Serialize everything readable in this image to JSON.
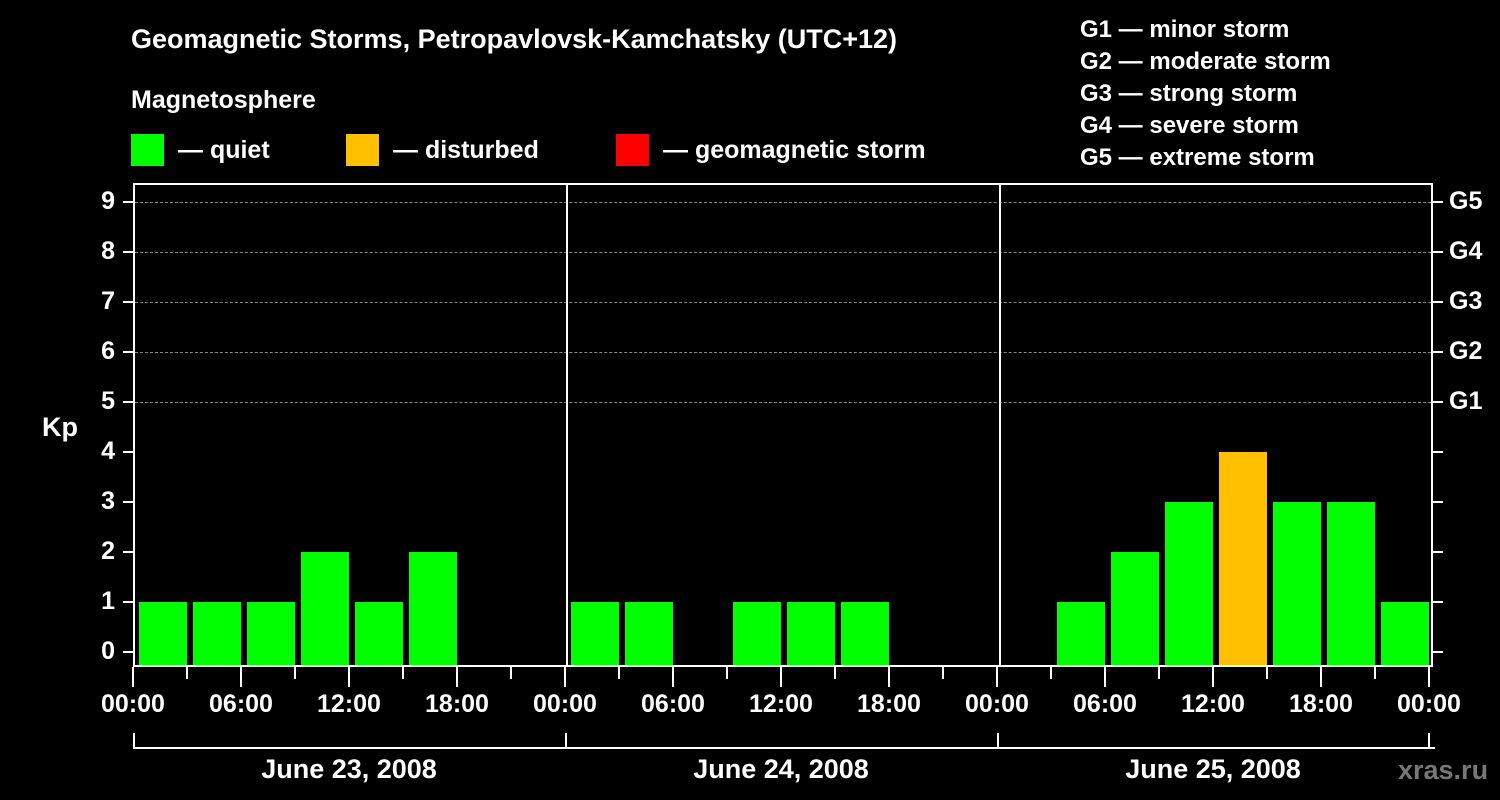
{
  "header": {
    "title": "Geomagnetic Storms, Petropavlovsk-Kamchatsky (UTC+12)",
    "subtitle": "Magnetosphere"
  },
  "legend": {
    "items": [
      {
        "label": "— quiet",
        "color": "#00ff00"
      },
      {
        "label": "— disturbed",
        "color": "#ffc000"
      },
      {
        "label": "— geomagnetic storm",
        "color": "#ff0000"
      }
    ]
  },
  "storm_scale": [
    "G1 — minor storm",
    "G2 — moderate storm",
    "G3 — strong storm",
    "G4 — severe storm",
    "G5 — extreme storm"
  ],
  "axes": {
    "ylabel": "Kp",
    "yticks": [
      "0",
      "1",
      "2",
      "3",
      "4",
      "5",
      "6",
      "7",
      "8",
      "9"
    ],
    "right_ticks": [
      {
        "kp": 5,
        "label": "G1"
      },
      {
        "kp": 6,
        "label": "G2"
      },
      {
        "kp": 7,
        "label": "G3"
      },
      {
        "kp": 8,
        "label": "G4"
      },
      {
        "kp": 9,
        "label": "G5"
      }
    ],
    "xticks": [
      "00:00",
      "06:00",
      "12:00",
      "18:00",
      "00:00",
      "06:00",
      "12:00",
      "18:00",
      "00:00",
      "06:00",
      "12:00",
      "18:00",
      "00:00"
    ],
    "dates": [
      "June 23, 2008",
      "June 24, 2008",
      "June 25, 2008"
    ]
  },
  "watermark": "xras.ru",
  "chart_data": {
    "type": "bar",
    "title": "Geomagnetic Storms, Petropavlovsk-Kamchatsky (UTC+12)",
    "xlabel": "",
    "ylabel": "Kp",
    "ylim": [
      0,
      9
    ],
    "grid": true,
    "interval_hours": 3,
    "legend": [
      "quiet",
      "disturbed",
      "geomagnetic storm"
    ],
    "categories": [
      "06-23 00:00",
      "06-23 03:00",
      "06-23 06:00",
      "06-23 09:00",
      "06-23 12:00",
      "06-23 15:00",
      "06-23 18:00",
      "06-23 21:00",
      "06-24 00:00",
      "06-24 03:00",
      "06-24 06:00",
      "06-24 09:00",
      "06-24 12:00",
      "06-24 15:00",
      "06-24 18:00",
      "06-24 21:00",
      "06-25 00:00",
      "06-25 03:00",
      "06-25 06:00",
      "06-25 09:00",
      "06-25 12:00",
      "06-25 15:00",
      "06-25 18:00",
      "06-25 21:00"
    ],
    "values": [
      1,
      1,
      1,
      2,
      1,
      2,
      null,
      null,
      1,
      1,
      null,
      1,
      1,
      1,
      null,
      null,
      null,
      1,
      2,
      3,
      4,
      3,
      3,
      1
    ],
    "status": [
      "quiet",
      "quiet",
      "quiet",
      "quiet",
      "quiet",
      "quiet",
      null,
      null,
      "quiet",
      "quiet",
      null,
      "quiet",
      "quiet",
      "quiet",
      null,
      null,
      null,
      "quiet",
      "quiet",
      "quiet",
      "disturbed",
      "quiet",
      "quiet",
      "quiet"
    ],
    "status_colors": {
      "quiet": "#00ff00",
      "disturbed": "#ffc000",
      "storm": "#ff0000"
    },
    "right_axis": {
      "5": "G1",
      "6": "G2",
      "7": "G3",
      "8": "G4",
      "9": "G5"
    },
    "date_labels": [
      "June 23, 2008",
      "June 24, 2008",
      "June 25, 2008"
    ]
  }
}
